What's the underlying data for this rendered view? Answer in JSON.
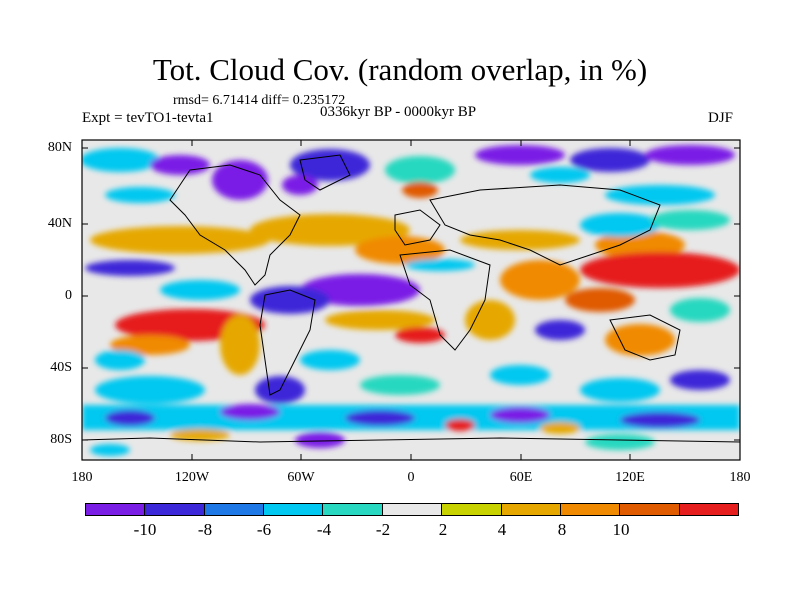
{
  "title": "Tot. Cloud Cov. (random overlap, in %)",
  "stats_line": "rmsd= 6.71414 diff= 0.235172",
  "experiment": "Expt = tevTO1-tevta1",
  "period": "0336kyr BP - 0000kyr BP",
  "season": "DJF",
  "lat_labels": [
    "80N",
    "40N",
    "0",
    "40S",
    "80S"
  ],
  "lon_labels": [
    "180",
    "120W",
    "60W",
    "0",
    "60E",
    "120E",
    "180"
  ],
  "colorbar": {
    "colors": [
      "#7a1ee6",
      "#3c28d8",
      "#1e78e6",
      "#00c8f0",
      "#28d8c0",
      "#e8e8e8",
      "#c8d200",
      "#e6a800",
      "#f08a00",
      "#e05a00",
      "#e61e1e"
    ],
    "labels": [
      "-10",
      "-8",
      "-6",
      "-4",
      "-2",
      "2",
      "4",
      "8",
      "10"
    ]
  },
  "map_features": {
    "regions": [
      {
        "name": "north-pacific-arctic",
        "type": "negative",
        "note": "purple/blue patches over high northern latitudes"
      },
      {
        "name": "mid-latitude-north-band",
        "type": "positive",
        "note": "orange band around 20-40N across Atlantic and Asia"
      },
      {
        "name": "south-pacific-convergence",
        "type": "positive",
        "note": "red/orange arc in southeast Pacific"
      },
      {
        "name": "tropical-atlantic",
        "type": "negative",
        "note": "purple band near equator over Atlantic"
      },
      {
        "name": "west-pacific-warm-pool",
        "type": "positive",
        "note": "red band near equator over western Pacific"
      },
      {
        "name": "southern-ocean",
        "type": "mixed",
        "note": "cyan/blue with scattered purple near 60S"
      }
    ]
  }
}
